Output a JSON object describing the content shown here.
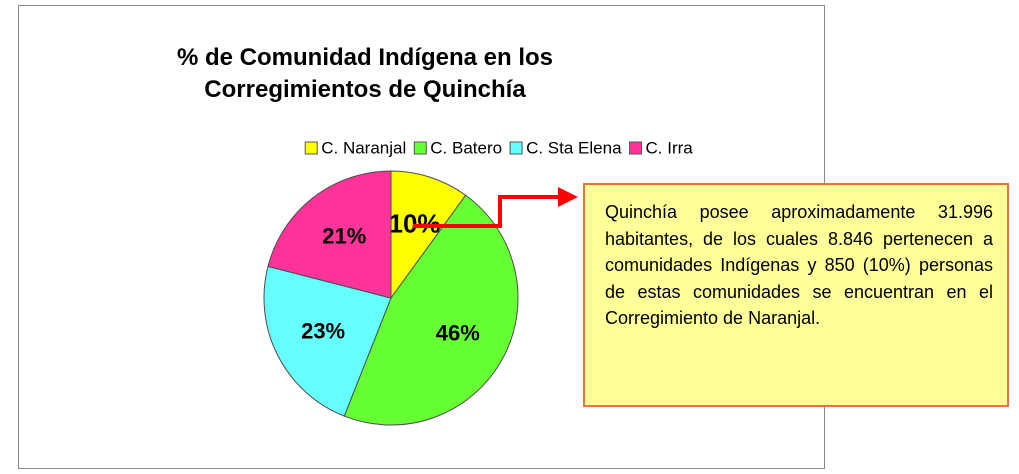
{
  "chart_data": {
    "type": "pie",
    "title": "% de Comunidad Indígena en los Corregimientos de Quinchía",
    "categories": [
      "C. Naranjal",
      "C. Batero",
      "C. Sta Elena",
      "C. Irra"
    ],
    "values": [
      10,
      46,
      23,
      21
    ],
    "value_labels": [
      "10%",
      "46%",
      "23%",
      "21%"
    ],
    "colors": [
      "#ffff00",
      "#66ff33",
      "#66ffff",
      "#ff3399"
    ],
    "legend": "top",
    "annotation": "Quinchía posee aproximadamente 31.996 habitantes, de los cuales 8.846 pertenecen a comunidades Indígenas y 850 (10%) personas de estas comunidades se encuentran en el Corregimiento de Naranjal."
  }
}
